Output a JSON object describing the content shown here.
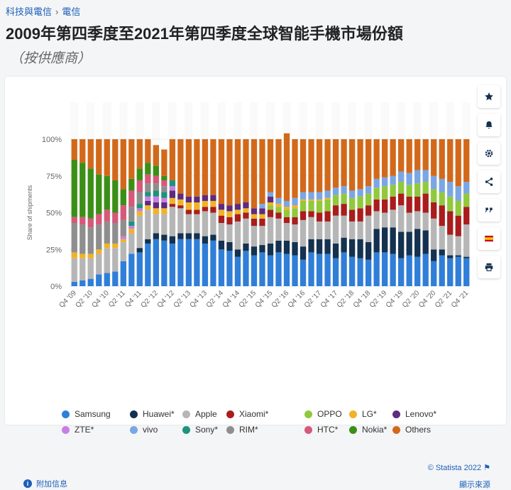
{
  "breadcrumb": [
    "科技與電信",
    "電信"
  ],
  "title": "2009年第四季度至2021年第四季度全球智能手機市場份額",
  "subtitle": "（按供應商）",
  "footer": {
    "copyright": "© Statista 2022",
    "additional_info": "附加信息",
    "show_source": "顯示來源"
  },
  "toolbar": [
    "star-icon",
    "bell-icon",
    "gear-icon",
    "share-icon",
    "quote-icon",
    "flag-spain-icon",
    "print-icon"
  ],
  "chart_data": {
    "type": "bar",
    "stacked": true,
    "ylabel": "Share of shipments",
    "y_ticks": [
      "0%",
      "25%",
      "50%",
      "75%",
      "100%"
    ],
    "ylim": [
      0,
      100
    ],
    "grid": true,
    "legend_position": "bottom",
    "x_tick_labels": [
      "Q4 '09",
      "Q2 '10",
      "Q4 '10",
      "Q2 '11",
      "Q4 '11",
      "Q2 '12",
      "Q4 '12",
      "Q2 '13",
      "Q4 '13",
      "Q2 '14",
      "Q4 '14",
      "Q2 '15",
      "Q4 '15",
      "Q2 '16",
      "Q4 '16",
      "Q2 '17",
      "Q4 '17",
      "Q2 '18",
      "Q4 '18",
      "Q2 '19",
      "Q4 '19",
      "Q2 '20",
      "Q4 '20",
      "Q2 '21",
      "Q4 '21"
    ],
    "categories": [
      "Q4 '09",
      "Q1 '10",
      "Q2 '10",
      "Q3 '10",
      "Q4 '10",
      "Q1 '11",
      "Q2 '11",
      "Q3 '11",
      "Q4 '11",
      "Q1 '12",
      "Q2 '12",
      "Q3 '12",
      "Q4 '12",
      "Q1 '13",
      "Q2 '13",
      "Q3 '13",
      "Q4 '13",
      "Q1 '14",
      "Q2 '14",
      "Q3 '14",
      "Q4 '14",
      "Q1 '15",
      "Q2 '15",
      "Q3 '15",
      "Q4 '15",
      "Q1 '16",
      "Q2 '16",
      "Q3 '16",
      "Q4 '16",
      "Q1 '17",
      "Q2 '17",
      "Q3 '17",
      "Q4 '17",
      "Q1 '18",
      "Q2 '18",
      "Q3 '18",
      "Q4 '18",
      "Q1 '19",
      "Q2 '19",
      "Q3 '19",
      "Q4 '19",
      "Q1 '20",
      "Q2 '20",
      "Q3 '20",
      "Q4 '20",
      "Q1 '21",
      "Q2 '21",
      "Q3 '21",
      "Q4 '21"
    ],
    "series": [
      {
        "name": "Samsung",
        "color": "#2f7ed8",
        "values": [
          3,
          4,
          5,
          8,
          9,
          10,
          17,
          22,
          23,
          29,
          32,
          31,
          29,
          32,
          32,
          32,
          29,
          31,
          25,
          24,
          20,
          24,
          21,
          23,
          21,
          23,
          22,
          21,
          18,
          23,
          22,
          22,
          19,
          23,
          20,
          19,
          18,
          23,
          23,
          22,
          19,
          21,
          20,
          22,
          17,
          21,
          19,
          20,
          19
        ]
      },
      {
        "name": "Huawei*",
        "color": "#14314f",
        "values": [
          0,
          0,
          0,
          0,
          0,
          0,
          0,
          0,
          3,
          3,
          4,
          4,
          5,
          4,
          4,
          4,
          5,
          4,
          6,
          6,
          5,
          5,
          6,
          5,
          8,
          8,
          9,
          9,
          9,
          9,
          10,
          10,
          10,
          10,
          12,
          13,
          12,
          16,
          17,
          18,
          18,
          16,
          19,
          16,
          8,
          4,
          2,
          1,
          1
        ]
      },
      {
        "name": "Apple",
        "color": "#b6b6b6",
        "values": [
          16,
          15,
          14,
          14,
          17,
          16,
          13,
          14,
          22,
          20,
          13,
          14,
          20,
          17,
          13,
          13,
          17,
          15,
          12,
          12,
          19,
          17,
          14,
          13,
          18,
          15,
          12,
          12,
          18,
          15,
          12,
          12,
          19,
          15,
          12,
          12,
          18,
          12,
          10,
          12,
          18,
          13,
          12,
          12,
          21,
          16,
          14,
          13,
          22
        ]
      },
      {
        "name": "Xiaomi*",
        "color": "#a91d1d",
        "values": [
          0,
          0,
          0,
          0,
          0,
          0,
          0,
          0,
          0,
          0,
          0,
          0,
          2,
          2,
          3,
          3,
          3,
          4,
          5,
          5,
          5,
          4,
          5,
          5,
          5,
          4,
          4,
          5,
          6,
          4,
          6,
          7,
          7,
          8,
          8,
          9,
          7,
          8,
          9,
          9,
          8,
          11,
          10,
          13,
          11,
          14,
          16,
          14,
          12
        ]
      },
      {
        "name": "OPPO",
        "color": "#90c93c",
        "values": [
          0,
          0,
          0,
          0,
          0,
          0,
          0,
          0,
          0,
          0,
          0,
          0,
          0,
          0,
          0,
          0,
          0,
          0,
          0,
          0,
          0,
          0,
          0,
          0,
          3,
          4,
          5,
          6,
          7,
          7,
          8,
          8,
          7,
          7,
          8,
          8,
          8,
          8,
          9,
          8,
          8,
          8,
          9,
          8,
          9,
          9,
          10,
          10,
          9
        ]
      },
      {
        "name": "LG*",
        "color": "#f0b327",
        "values": [
          4,
          3,
          3,
          3,
          3,
          3,
          2,
          3,
          3,
          3,
          4,
          4,
          4,
          4,
          5,
          5,
          4,
          4,
          4,
          4,
          3,
          3,
          3,
          3,
          2,
          2,
          2,
          2,
          1,
          1,
          1,
          1,
          0,
          0,
          0,
          0,
          0,
          0,
          0,
          0,
          0,
          0,
          0,
          0,
          0,
          0,
          0,
          0,
          0
        ]
      },
      {
        "name": "Lenovo*",
        "color": "#5e2b7d",
        "values": [
          0,
          0,
          0,
          0,
          0,
          0,
          0,
          0,
          0,
          3,
          4,
          4,
          5,
          4,
          4,
          4,
          4,
          4,
          4,
          4,
          4,
          4,
          4,
          4,
          4,
          0,
          0,
          0,
          0,
          0,
          0,
          0,
          0,
          0,
          0,
          0,
          0,
          0,
          0,
          0,
          0,
          0,
          0,
          0,
          0,
          0,
          0,
          0,
          0
        ]
      },
      {
        "name": "ZTE*",
        "color": "#c97ee7",
        "values": [
          0,
          0,
          0,
          0,
          0,
          0,
          2,
          2,
          2,
          3,
          4,
          3,
          3,
          0,
          0,
          0,
          0,
          0,
          0,
          0,
          0,
          0,
          0,
          0,
          0,
          0,
          0,
          0,
          0,
          0,
          0,
          0,
          0,
          0,
          0,
          0,
          0,
          0,
          0,
          0,
          0,
          0,
          0,
          0,
          0,
          0,
          0,
          0,
          0
        ]
      },
      {
        "name": "vivo",
        "color": "#7aa6e4",
        "values": [
          0,
          0,
          0,
          0,
          0,
          0,
          0,
          0,
          0,
          0,
          0,
          0,
          0,
          0,
          0,
          0,
          0,
          0,
          0,
          0,
          0,
          0,
          0,
          3,
          3,
          4,
          4,
          5,
          5,
          5,
          5,
          5,
          5,
          5,
          5,
          5,
          5,
          6,
          6,
          6,
          7,
          8,
          9,
          8,
          9,
          9,
          10,
          10,
          8
        ]
      },
      {
        "name": "Sony*",
        "color": "#1e937b",
        "values": [
          0,
          0,
          0,
          0,
          0,
          0,
          0,
          3,
          3,
          3,
          4,
          4,
          4,
          0,
          0,
          0,
          0,
          0,
          0,
          0,
          0,
          0,
          0,
          0,
          0,
          0,
          0,
          0,
          0,
          0,
          0,
          0,
          0,
          0,
          0,
          0,
          0,
          0,
          0,
          0,
          0,
          0,
          0,
          0,
          0,
          0,
          0,
          0,
          0
        ]
      },
      {
        "name": "RIM*",
        "color": "#8e8e8e",
        "values": [
          20,
          20,
          18,
          17,
          15,
          14,
          11,
          10,
          8,
          6,
          5,
          4,
          0,
          0,
          0,
          0,
          0,
          0,
          0,
          0,
          0,
          0,
          0,
          0,
          0,
          0,
          0,
          0,
          0,
          0,
          0,
          0,
          0,
          0,
          0,
          0,
          0,
          0,
          0,
          0,
          0,
          0,
          0,
          0,
          0,
          0,
          0,
          0,
          0
        ]
      },
      {
        "name": "HTC*",
        "color": "#d6587a",
        "values": [
          4,
          5,
          6,
          7,
          8,
          7,
          10,
          11,
          8,
          6,
          5,
          4,
          0,
          0,
          0,
          0,
          0,
          0,
          0,
          0,
          0,
          0,
          0,
          0,
          0,
          0,
          0,
          0,
          0,
          0,
          0,
          0,
          0,
          0,
          0,
          0,
          0,
          0,
          0,
          0,
          0,
          0,
          0,
          0,
          0,
          0,
          0,
          0,
          0
        ]
      },
      {
        "name": "Nokia*",
        "color": "#3b8f17",
        "values": [
          39,
          37,
          34,
          27,
          23,
          22,
          11,
          8,
          8,
          8,
          7,
          3,
          0,
          0,
          0,
          0,
          0,
          0,
          0,
          0,
          0,
          0,
          0,
          0,
          0,
          0,
          0,
          0,
          0,
          0,
          0,
          0,
          0,
          0,
          0,
          0,
          0,
          0,
          0,
          0,
          0,
          0,
          0,
          0,
          0,
          0,
          0,
          0,
          0
        ]
      },
      {
        "name": "Others",
        "color": "#d2691a",
        "values": [
          14,
          16,
          20,
          24,
          25,
          28,
          34,
          27,
          20,
          16,
          14,
          18,
          28,
          37,
          39,
          39,
          38,
          38,
          44,
          45,
          44,
          43,
          47,
          44,
          36,
          40,
          46,
          40,
          36,
          36,
          36,
          35,
          33,
          32,
          35,
          34,
          32,
          27,
          26,
          25,
          22,
          23,
          21,
          21,
          25,
          27,
          29,
          32,
          29
        ]
      }
    ]
  }
}
